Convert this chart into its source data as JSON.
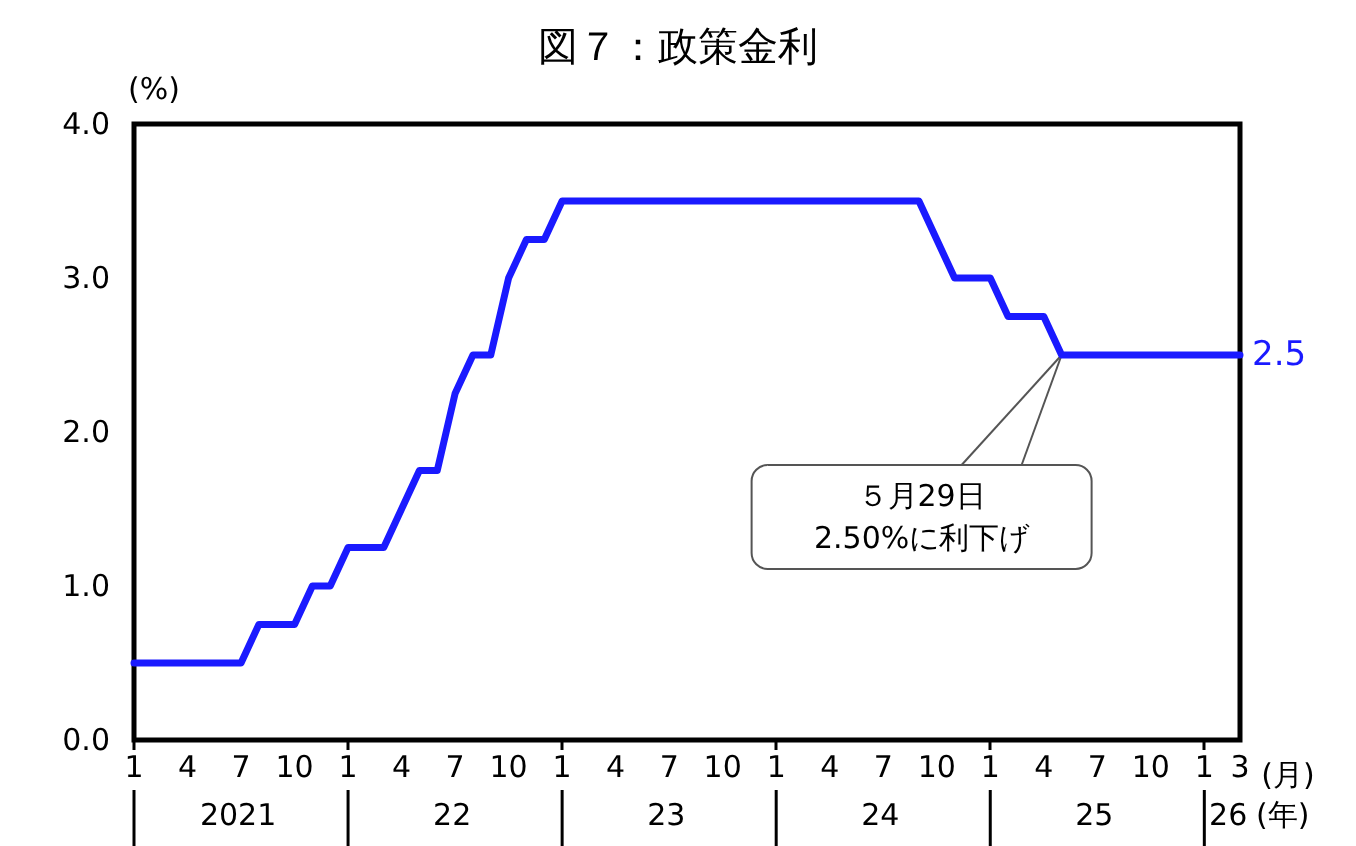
{
  "chart_data": {
    "type": "line",
    "title": "図７：政策金利",
    "ylabel": "(%)",
    "xlabel": "(月)",
    "x": [
      "2021-01",
      "2021-02",
      "2021-03",
      "2021-04",
      "2021-05",
      "2021-06",
      "2021-07",
      "2021-08",
      "2021-09",
      "2021-10",
      "2021-11",
      "2021-12",
      "2022-01",
      "2022-02",
      "2022-03",
      "2022-04",
      "2022-05",
      "2022-06",
      "2022-07",
      "2022-08",
      "2022-09",
      "2022-10",
      "2022-11",
      "2022-12",
      "2023-01",
      "2023-02",
      "2023-03",
      "2023-04",
      "2023-05",
      "2023-06",
      "2023-07",
      "2023-08",
      "2023-09",
      "2023-10",
      "2023-11",
      "2023-12",
      "2024-01",
      "2024-02",
      "2024-03",
      "2024-04",
      "2024-05",
      "2024-06",
      "2024-07",
      "2024-08",
      "2024-09",
      "2024-10",
      "2024-11",
      "2024-12",
      "2025-01",
      "2025-02",
      "2025-03",
      "2025-04",
      "2025-05",
      "2025-06",
      "2025-07",
      "2025-08",
      "2025-09",
      "2025-10",
      "2025-11",
      "2025-12",
      "2026-01",
      "2026-02",
      "2026-03"
    ],
    "series": [
      {
        "color": "#1a1aff",
        "values": [
          0.5,
          0.5,
          0.5,
          0.5,
          0.5,
          0.5,
          0.5,
          0.75,
          0.75,
          0.75,
          1.0,
          1.0,
          1.25,
          1.25,
          1.25,
          1.5,
          1.75,
          1.75,
          2.25,
          2.5,
          2.5,
          3.0,
          3.25,
          3.25,
          3.5,
          3.5,
          3.5,
          3.5,
          3.5,
          3.5,
          3.5,
          3.5,
          3.5,
          3.5,
          3.5,
          3.5,
          3.5,
          3.5,
          3.5,
          3.5,
          3.5,
          3.5,
          3.5,
          3.5,
          3.5,
          3.25,
          3.0,
          3.0,
          3.0,
          2.75,
          2.75,
          2.75,
          2.5,
          2.5,
          2.5,
          2.5,
          2.5,
          2.5,
          2.5,
          2.5,
          2.5,
          2.5,
          2.5
        ],
        "value_labels": [
          null,
          null,
          null,
          null,
          null,
          null,
          null,
          null,
          null,
          null,
          null,
          null,
          null,
          null,
          null,
          null,
          null,
          null,
          null,
          null,
          null,
          null,
          null,
          null,
          null,
          null,
          null,
          null,
          null,
          null,
          null,
          null,
          null,
          null,
          null,
          null,
          null,
          null,
          null,
          null,
          null,
          null,
          null,
          null,
          null,
          null,
          null,
          null,
          null,
          null,
          null,
          null,
          null,
          null,
          null,
          null,
          null,
          null,
          null,
          null,
          null,
          null,
          "2.5"
        ]
      }
    ],
    "xlim": [
      "2021-01",
      "2026-03"
    ],
    "xticks": [
      {
        "value": "2021-01",
        "label": "1"
      },
      {
        "value": "2021-04",
        "label": "4"
      },
      {
        "value": "2021-07",
        "label": "7"
      },
      {
        "value": "2021-10",
        "label": "10"
      },
      {
        "value": "2022-01",
        "label": "1"
      },
      {
        "value": "2022-04",
        "label": "4"
      },
      {
        "value": "2022-07",
        "label": "7"
      },
      {
        "value": "2022-10",
        "label": "10"
      },
      {
        "value": "2023-01",
        "label": "1"
      },
      {
        "value": "2023-04",
        "label": "4"
      },
      {
        "value": "2023-07",
        "label": "7"
      },
      {
        "value": "2023-10",
        "label": "10"
      },
      {
        "value": "2024-01",
        "label": "1"
      },
      {
        "value": "2024-04",
        "label": "4"
      },
      {
        "value": "2024-07",
        "label": "7"
      },
      {
        "value": "2024-10",
        "label": "10"
      },
      {
        "value": "2025-01",
        "label": "1"
      },
      {
        "value": "2025-04",
        "label": "4"
      },
      {
        "value": "2025-07",
        "label": "7"
      },
      {
        "value": "2025-10",
        "label": "10"
      },
      {
        "value": "2026-01",
        "label": "1"
      },
      {
        "value": "2026-03",
        "label": "3"
      }
    ],
    "ylim": [
      0,
      4
    ],
    "yticks": [
      {
        "value": 0,
        "label": "0.0"
      },
      {
        "value": 1,
        "label": "1.0"
      },
      {
        "value": 2,
        "label": "2.0"
      },
      {
        "value": 3,
        "label": "3.0"
      },
      {
        "value": 4,
        "label": "4.0"
      }
    ],
    "grid": false,
    "marker": "none",
    "line_style": "solid",
    "annotations": [
      "2021",
      "22",
      "23",
      "24",
      "25",
      "26",
      "(年)",
      {
        "text": "５月29日\n2.50%に利下げ",
        "x": "2025-05",
        "y": 2.5
      }
    ]
  }
}
